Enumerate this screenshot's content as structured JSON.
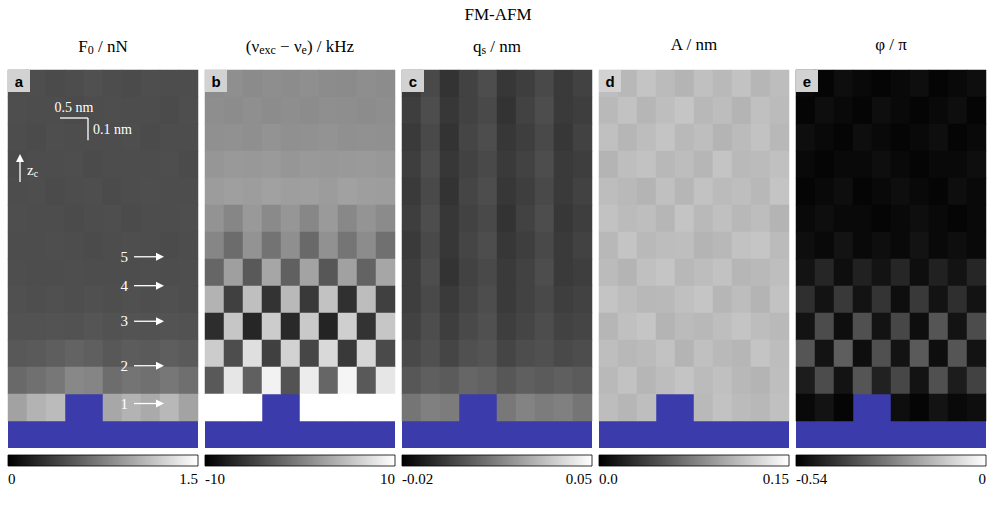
{
  "title": "FM-AFM",
  "chart_data": [
    {
      "type": "heatmap",
      "letter": "a",
      "title": [
        {
          "text": "F"
        },
        {
          "text": "0",
          "sub": true
        },
        {
          "text": " / nN"
        }
      ],
      "xlim": [
        0,
        3.4
      ],
      "ylim": [
        0,
        1.7
      ],
      "tick_labels": false,
      "surface_color": "#3b3bab",
      "colorbar": {
        "range": [
          0,
          1.5
        ],
        "ticks": [
          0,
          1.5
        ],
        "colors": [
          "#000000",
          "#ffffff"
        ]
      },
      "scale_bar": {
        "x_length": 0.5,
        "x_label": "0.5 nm",
        "z_length": 0.1,
        "z_label": "0.1 nm"
      },
      "axis_arrow": [
        {
          "text": "z"
        },
        {
          "text": "c",
          "sub": true
        }
      ],
      "markers": [
        {
          "label": "1",
          "z": 0.2
        },
        {
          "label": "2",
          "z": 0.37
        },
        {
          "label": "3",
          "z": 0.57
        },
        {
          "label": "4",
          "z": 0.73
        },
        {
          "label": "5",
          "z": 0.86
        }
      ],
      "values": [
        [
          0.45,
          0.46,
          0.44,
          0.45,
          0.47,
          0.45,
          0.44,
          0.46,
          0.45,
          0.45
        ],
        [
          0.46,
          0.45,
          0.45,
          0.44,
          0.45,
          0.46,
          0.45,
          0.45,
          0.44,
          0.46
        ],
        [
          0.45,
          0.44,
          0.46,
          0.45,
          0.45,
          0.45,
          0.46,
          0.44,
          0.45,
          0.45
        ],
        [
          0.44,
          0.45,
          0.45,
          0.46,
          0.44,
          0.45,
          0.45,
          0.45,
          0.46,
          0.44
        ],
        [
          0.45,
          0.46,
          0.44,
          0.45,
          0.46,
          0.44,
          0.45,
          0.46,
          0.45,
          0.45
        ],
        [
          0.46,
          0.45,
          0.45,
          0.44,
          0.45,
          0.46,
          0.44,
          0.45,
          0.45,
          0.46
        ],
        [
          0.45,
          0.45,
          0.46,
          0.45,
          0.44,
          0.45,
          0.46,
          0.45,
          0.44,
          0.45
        ],
        [
          0.46,
          0.45,
          0.45,
          0.46,
          0.45,
          0.45,
          0.45,
          0.46,
          0.45,
          0.46
        ],
        [
          0.47,
          0.46,
          0.47,
          0.46,
          0.47,
          0.46,
          0.47,
          0.46,
          0.47,
          0.46
        ],
        [
          0.48,
          0.48,
          0.49,
          0.48,
          0.5,
          0.48,
          0.49,
          0.48,
          0.49,
          0.48
        ],
        [
          0.52,
          0.53,
          0.55,
          0.58,
          0.56,
          0.52,
          0.54,
          0.53,
          0.55,
          0.53
        ],
        [
          0.62,
          0.66,
          0.7,
          0.8,
          0.78,
          0.64,
          0.68,
          0.66,
          0.7,
          0.65
        ],
        [
          0.95,
          1.05,
          1.1,
          null,
          null,
          0.98,
          1.05,
          1.0,
          1.08,
          0.96
        ],
        [
          null,
          null,
          null,
          null,
          null,
          null,
          null,
          null,
          null,
          null
        ]
      ]
    },
    {
      "type": "heatmap",
      "letter": "b",
      "title": [
        {
          "text": "(ν"
        },
        {
          "text": "exc",
          "sub": true
        },
        {
          "text": " − ν"
        },
        {
          "text": "e",
          "sub": true
        },
        {
          "text": ") / kHz"
        }
      ],
      "xlim": [
        0,
        3.4
      ],
      "ylim": [
        0,
        1.7
      ],
      "tick_labels": false,
      "surface_color": "#3b3bab",
      "colorbar": {
        "range": [
          -10,
          10
        ],
        "ticks": [
          -10,
          10
        ],
        "colors": [
          "#000000",
          "#ffffff"
        ]
      },
      "values": [
        [
          1.0,
          1.2,
          0.9,
          1.1,
          1.0,
          1.2,
          1.0,
          0.9,
          1.1,
          1.0
        ],
        [
          1.1,
          1.0,
          1.2,
          1.0,
          1.1,
          1.0,
          1.2,
          1.1,
          1.0,
          1.1
        ],
        [
          1.3,
          1.4,
          1.2,
          1.5,
          1.3,
          1.4,
          1.5,
          1.3,
          1.4,
          1.3
        ],
        [
          1.8,
          2.0,
          1.9,
          2.1,
          1.8,
          2.0,
          1.9,
          2.0,
          2.1,
          1.9
        ],
        [
          2.2,
          2.5,
          2.3,
          2.6,
          2.4,
          2.5,
          2.2,
          2.6,
          2.4,
          2.3
        ],
        [
          1.5,
          0.5,
          2.0,
          0.8,
          1.8,
          0.6,
          2.1,
          0.7,
          1.6,
          0.9
        ],
        [
          0.5,
          -1.5,
          1.5,
          -1.0,
          1.2,
          -1.8,
          1.4,
          -0.8,
          1.0,
          -1.2
        ],
        [
          -2.0,
          2.5,
          -3.0,
          3.0,
          -2.5,
          2.8,
          -3.2,
          2.6,
          -2.2,
          3.0
        ],
        [
          4.0,
          -5.0,
          5.0,
          -6.0,
          4.5,
          -5.5,
          5.2,
          -6.2,
          4.8,
          -5.0
        ],
        [
          -6.5,
          5.5,
          -7.0,
          6.0,
          -6.8,
          5.8,
          -7.2,
          6.2,
          -6.0,
          5.5
        ],
        [
          6.0,
          -4.0,
          7.5,
          -5.0,
          6.5,
          -4.5,
          7.0,
          -5.5,
          6.8,
          -4.2
        ],
        [
          -3.0,
          8.0,
          -2.5,
          9.0,
          -3.5,
          8.5,
          -2.0,
          9.2,
          -3.0,
          8.0
        ],
        [
          10.0,
          10.0,
          10.0,
          null,
          null,
          10.0,
          10.0,
          10.0,
          10.0,
          10.0
        ],
        [
          null,
          null,
          null,
          null,
          null,
          null,
          null,
          null,
          null,
          null
        ]
      ]
    },
    {
      "type": "heatmap",
      "letter": "c",
      "title": [
        {
          "text": "q"
        },
        {
          "text": "s",
          "sub": true
        },
        {
          "text": " / nm"
        }
      ],
      "xlim": [
        0,
        3.4
      ],
      "ylim": [
        0,
        1.7
      ],
      "tick_labels": false,
      "surface_color": "#3b3bab",
      "colorbar": {
        "range": [
          -0.02,
          0.05
        ],
        "ticks": [
          -0.02,
          0.05
        ],
        "colors": [
          "#000000",
          "#ffffff"
        ]
      },
      "values": [
        [
          -0.004,
          0.0,
          -0.006,
          -0.002,
          0.001,
          -0.005,
          -0.003,
          0.0,
          -0.004,
          -0.002
        ],
        [
          -0.003,
          0.001,
          -0.005,
          -0.002,
          0.0,
          -0.006,
          -0.002,
          0.001,
          -0.004,
          -0.003
        ],
        [
          -0.004,
          0.0,
          -0.006,
          -0.001,
          0.001,
          -0.005,
          -0.003,
          0.0,
          -0.005,
          -0.002
        ],
        [
          -0.003,
          0.001,
          -0.005,
          -0.002,
          0.0,
          -0.004,
          -0.002,
          0.001,
          -0.004,
          -0.003
        ],
        [
          -0.004,
          0.0,
          -0.006,
          -0.001,
          0.001,
          -0.005,
          -0.003,
          0.0,
          -0.004,
          -0.002
        ],
        [
          -0.003,
          0.001,
          -0.005,
          -0.002,
          0.0,
          -0.006,
          -0.002,
          0.001,
          -0.005,
          -0.003
        ],
        [
          -0.004,
          0.0,
          -0.005,
          -0.001,
          0.001,
          -0.005,
          -0.003,
          0.0,
          -0.004,
          -0.002
        ],
        [
          -0.003,
          0.001,
          -0.006,
          -0.002,
          0.0,
          -0.004,
          -0.002,
          0.001,
          -0.004,
          -0.003
        ],
        [
          -0.003,
          0.0,
          -0.004,
          -0.001,
          0.001,
          -0.004,
          -0.002,
          0.0,
          -0.003,
          -0.002
        ],
        [
          -0.002,
          0.001,
          -0.003,
          0.0,
          0.002,
          -0.003,
          -0.001,
          0.001,
          -0.002,
          -0.001
        ],
        [
          0.0,
          0.002,
          -0.001,
          0.002,
          0.003,
          -0.001,
          0.001,
          0.002,
          0.0,
          0.001
        ],
        [
          0.004,
          0.006,
          0.005,
          0.008,
          0.007,
          0.004,
          0.006,
          0.005,
          0.006,
          0.005
        ],
        [
          0.012,
          0.015,
          0.014,
          null,
          null,
          0.013,
          0.016,
          0.014,
          0.015,
          0.012
        ],
        [
          null,
          null,
          null,
          null,
          null,
          null,
          null,
          null,
          null,
          null
        ]
      ]
    },
    {
      "type": "heatmap",
      "letter": "d",
      "title": [
        {
          "text": "A / nm"
        }
      ],
      "xlim": [
        0,
        3.4
      ],
      "ylim": [
        0,
        1.7
      ],
      "tick_labels": false,
      "surface_color": "#3b3bab",
      "colorbar": {
        "range": [
          0,
          0.15
        ],
        "ticks": [
          {
            "value": 0,
            "label": "0.0"
          },
          0.15
        ],
        "colors": [
          "#000000",
          "#ffffff"
        ]
      },
      "values": [
        [
          0.112,
          0.108,
          0.115,
          0.11,
          0.106,
          0.113,
          0.109,
          0.114,
          0.107,
          0.111
        ],
        [
          0.109,
          0.114,
          0.107,
          0.112,
          0.116,
          0.108,
          0.111,
          0.106,
          0.113,
          0.11
        ],
        [
          0.113,
          0.107,
          0.111,
          0.115,
          0.109,
          0.112,
          0.106,
          0.11,
          0.114,
          0.108
        ],
        [
          0.106,
          0.112,
          0.114,
          0.108,
          0.111,
          0.107,
          0.115,
          0.109,
          0.11,
          0.113
        ],
        [
          0.111,
          0.109,
          0.106,
          0.113,
          0.107,
          0.114,
          0.11,
          0.112,
          0.108,
          0.115
        ],
        [
          0.114,
          0.11,
          0.112,
          0.107,
          0.115,
          0.109,
          0.113,
          0.108,
          0.111,
          0.106
        ],
        [
          0.108,
          0.115,
          0.109,
          0.111,
          0.112,
          0.106,
          0.108,
          0.114,
          0.116,
          0.11
        ],
        [
          0.11,
          0.106,
          0.113,
          0.116,
          0.108,
          0.111,
          0.114,
          0.107,
          0.109,
          0.112
        ],
        [
          0.115,
          0.111,
          0.108,
          0.109,
          0.113,
          0.116,
          0.107,
          0.111,
          0.106,
          0.114
        ],
        [
          0.107,
          0.113,
          0.116,
          0.106,
          0.11,
          0.108,
          0.112,
          0.115,
          0.111,
          0.109
        ],
        [
          0.112,
          0.108,
          0.11,
          0.114,
          0.106,
          0.113,
          0.109,
          0.107,
          0.115,
          0.111
        ],
        [
          0.109,
          0.114,
          0.107,
          0.111,
          0.115,
          0.11,
          0.113,
          0.108,
          0.106,
          0.112
        ],
        [
          0.111,
          0.107,
          0.112,
          null,
          null,
          0.109,
          0.114,
          0.11,
          0.108,
          0.113
        ],
        [
          null,
          null,
          null,
          null,
          null,
          null,
          null,
          null,
          null,
          null
        ]
      ]
    },
    {
      "type": "heatmap",
      "letter": "e",
      "title": [
        {
          "text": "φ / π"
        }
      ],
      "xlim": [
        0,
        3.4
      ],
      "ylim": [
        0,
        1.7
      ],
      "tick_labels": false,
      "surface_color": "#3b3bab",
      "colorbar": {
        "range": [
          -0.54,
          0
        ],
        "ticks": [
          -0.54,
          0
        ],
        "colors": [
          "#000000",
          "#ffffff"
        ]
      },
      "values": [
        [
          -0.52,
          -0.53,
          -0.51,
          -0.52,
          -0.53,
          -0.52,
          -0.51,
          -0.53,
          -0.52,
          -0.51
        ],
        [
          -0.53,
          -0.51,
          -0.52,
          -0.53,
          -0.51,
          -0.52,
          -0.53,
          -0.52,
          -0.51,
          -0.53
        ],
        [
          -0.51,
          -0.52,
          -0.53,
          -0.51,
          -0.52,
          -0.53,
          -0.52,
          -0.51,
          -0.53,
          -0.52
        ],
        [
          -0.52,
          -0.53,
          -0.52,
          -0.52,
          -0.51,
          -0.52,
          -0.53,
          -0.52,
          -0.52,
          -0.51
        ],
        [
          -0.53,
          -0.52,
          -0.51,
          -0.53,
          -0.52,
          -0.51,
          -0.52,
          -0.53,
          -0.51,
          -0.52
        ],
        [
          -0.52,
          -0.51,
          -0.52,
          -0.52,
          -0.53,
          -0.52,
          -0.51,
          -0.52,
          -0.53,
          -0.52
        ],
        [
          -0.51,
          -0.52,
          -0.5,
          -0.52,
          -0.51,
          -0.52,
          -0.5,
          -0.52,
          -0.51,
          -0.52
        ],
        [
          -0.5,
          -0.46,
          -0.51,
          -0.47,
          -0.5,
          -0.46,
          -0.51,
          -0.47,
          -0.5,
          -0.46
        ],
        [
          -0.44,
          -0.5,
          -0.42,
          -0.5,
          -0.43,
          -0.51,
          -0.42,
          -0.5,
          -0.44,
          -0.5
        ],
        [
          -0.5,
          -0.38,
          -0.51,
          -0.37,
          -0.5,
          -0.39,
          -0.51,
          -0.36,
          -0.5,
          -0.38
        ],
        [
          -0.36,
          -0.5,
          -0.34,
          -0.51,
          -0.37,
          -0.5,
          -0.35,
          -0.51,
          -0.36,
          -0.5
        ],
        [
          -0.48,
          -0.38,
          -0.5,
          -0.36,
          -0.47,
          -0.39,
          -0.5,
          -0.37,
          -0.48,
          -0.4
        ],
        [
          -0.52,
          -0.5,
          -0.53,
          null,
          null,
          -0.51,
          -0.53,
          -0.5,
          -0.52,
          -0.51
        ],
        [
          null,
          null,
          null,
          null,
          null,
          null,
          null,
          null,
          null,
          null
        ]
      ]
    }
  ]
}
